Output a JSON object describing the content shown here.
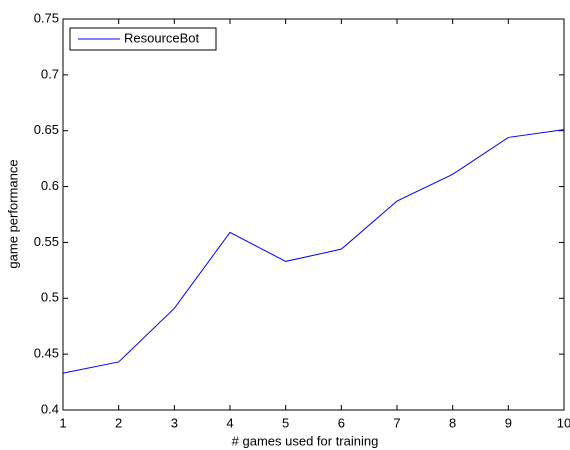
{
  "chart_data": {
    "type": "line",
    "xlabel": "# games used for training",
    "ylabel": "game performance",
    "x": [
      1,
      2,
      3,
      4,
      5,
      6,
      7,
      8,
      9,
      10
    ],
    "series": [
      {
        "name": "ResourceBot",
        "color": "#0000ff",
        "values": [
          0.433,
          0.443,
          0.491,
          0.559,
          0.533,
          0.544,
          0.587,
          0.611,
          0.644,
          0.651
        ]
      }
    ],
    "xlim": [
      1,
      10
    ],
    "xticks": [
      1,
      2,
      3,
      4,
      5,
      6,
      7,
      8,
      9,
      10
    ],
    "ylim": [
      0.4,
      0.75
    ],
    "yticks": [
      0.4,
      0.45,
      0.5,
      0.55,
      0.6,
      0.65,
      0.7,
      0.75
    ],
    "grid": false,
    "legend": "upper-left"
  }
}
